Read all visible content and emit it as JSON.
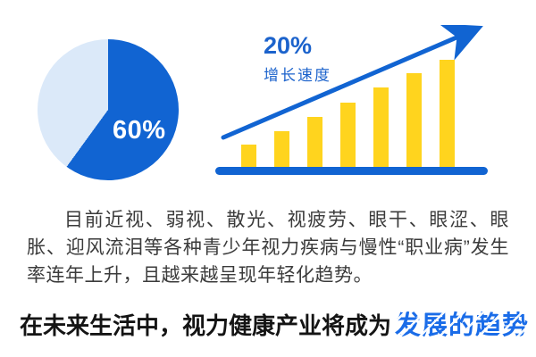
{
  "colors": {
    "primary_blue": "#1164d2",
    "light_blue": "#dbe9f9",
    "bar_yellow": "#ffd41e",
    "annot_blue": "#1c63cc",
    "body_text": "#3b3b3b",
    "headline_black": "#141414",
    "headline_blue": "#1a6ce8",
    "page_bg": "#ffffff"
  },
  "chart_data": [
    {
      "type": "pie",
      "labels": [
        "highlighted share",
        "remainder"
      ],
      "values": [
        60,
        40
      ],
      "colors": [
        "#1164d2",
        "#dbe9f9"
      ],
      "center_label": "60%",
      "start_angle_deg": 0,
      "legend": "none",
      "title": ""
    },
    {
      "type": "bar",
      "categories": [
        "",
        "",
        "",
        "",
        "",
        "",
        ""
      ],
      "values": [
        25,
        40,
        56,
        72,
        89,
        105,
        120
      ],
      "value_units": "relative px heights (no axis labels shown)",
      "bar_color": "#ffd41e",
      "baseline_color": "#1164d2",
      "trend_arrow": true,
      "annotation_percent": "20%",
      "annotation_label": "增长速度",
      "grid": false,
      "legend": "none",
      "title": ""
    }
  ],
  "paragraph": {
    "text": "目前近视、弱视、散光、视疲劳、眼干、眼涩、眼胀、迎风流泪等各种青少年视力疾病与慢性“职业病”发生率连年上升，且越来越呈现年轻化趋势。"
  },
  "headline": {
    "prefix": "在未来生活中，视力健康产业将成为",
    "highlight": "发展的趋势"
  }
}
